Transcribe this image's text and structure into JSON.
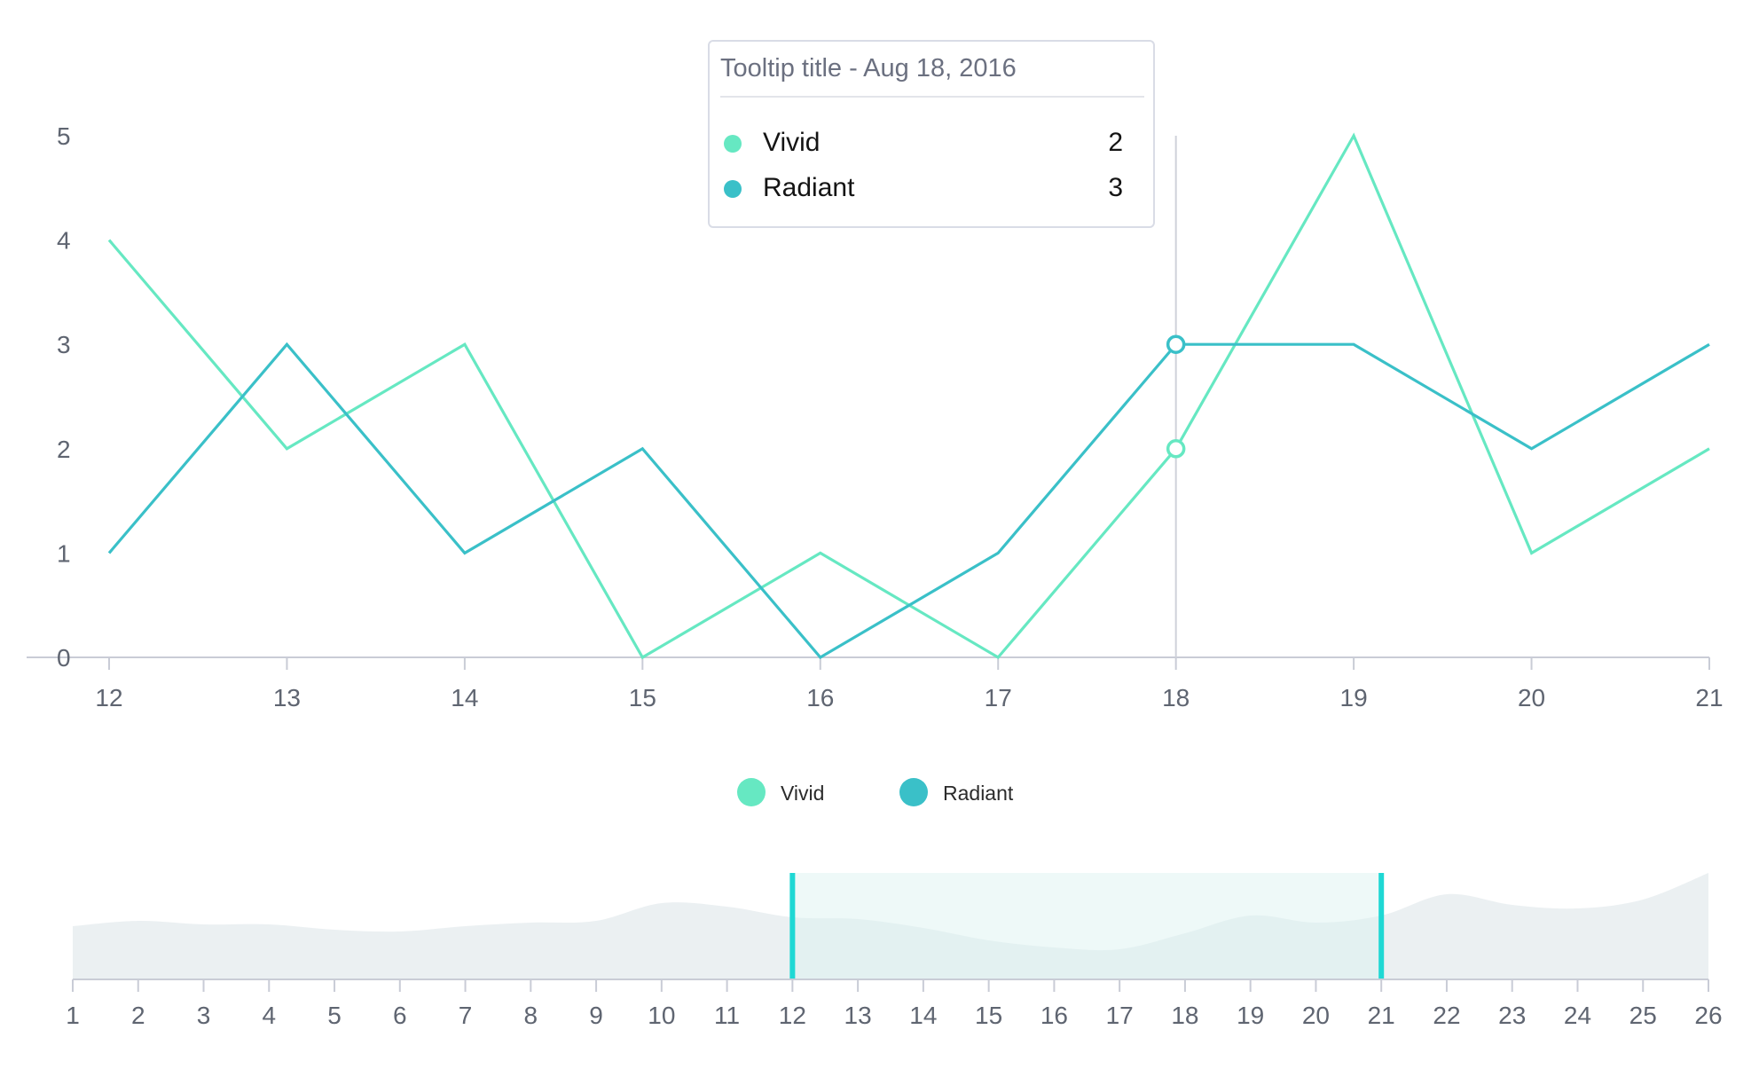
{
  "colors": {
    "vivid": "#66e8c2",
    "radiant": "#3ac0c8",
    "axis": "#c9ccd6",
    "tick_text": "#5f6571",
    "brush_area": "#e8edf0",
    "brush_selection": "#d9f2ef",
    "brush_handle": "#1fd8d4",
    "crosshair": "#cfd2da"
  },
  "tooltip": {
    "title": "Tooltip title - Aug 18, 2016",
    "items": [
      {
        "name": "Vivid",
        "value": "2"
      },
      {
        "name": "Radiant",
        "value": "3"
      }
    ]
  },
  "legend": [
    "Vivid",
    "Radiant"
  ],
  "chart_data": [
    {
      "type": "line",
      "x": [
        12,
        13,
        14,
        15,
        16,
        17,
        18,
        19,
        20,
        21
      ],
      "series": [
        {
          "name": "Vivid",
          "values": [
            4,
            2,
            3,
            0,
            1,
            0,
            2,
            5,
            1,
            2
          ]
        },
        {
          "name": "Radiant",
          "values": [
            1,
            3,
            1,
            2,
            0,
            1,
            3,
            3,
            2,
            3
          ]
        }
      ],
      "ylim": [
        0,
        5
      ],
      "yticks": [
        0,
        1,
        2,
        3,
        4,
        5
      ],
      "xticks": [
        12,
        13,
        14,
        15,
        16,
        17,
        18,
        19,
        20,
        21
      ],
      "highlight_x": 18,
      "legend_position": "bottom"
    },
    {
      "type": "area",
      "x": [
        1,
        2,
        3,
        4,
        5,
        6,
        7,
        8,
        9,
        10,
        11,
        12,
        13,
        14,
        15,
        16,
        17,
        18,
        19,
        20,
        21,
        22,
        23,
        24,
        25,
        26
      ],
      "values": [
        3.0,
        3.3,
        3.1,
        3.1,
        2.8,
        2.7,
        3.0,
        3.2,
        3.3,
        4.3,
        4.1,
        3.5,
        3.4,
        2.9,
        2.2,
        1.8,
        1.7,
        2.6,
        3.6,
        3.2,
        3.6,
        4.8,
        4.2,
        4.0,
        4.5,
        6.0
      ],
      "ylim": [
        0,
        6
      ],
      "xticks": [
        1,
        2,
        3,
        4,
        5,
        6,
        7,
        8,
        9,
        10,
        11,
        12,
        13,
        14,
        15,
        16,
        17,
        18,
        19,
        20,
        21,
        22,
        23,
        24,
        25,
        26
      ],
      "selection": [
        12,
        21
      ]
    }
  ]
}
